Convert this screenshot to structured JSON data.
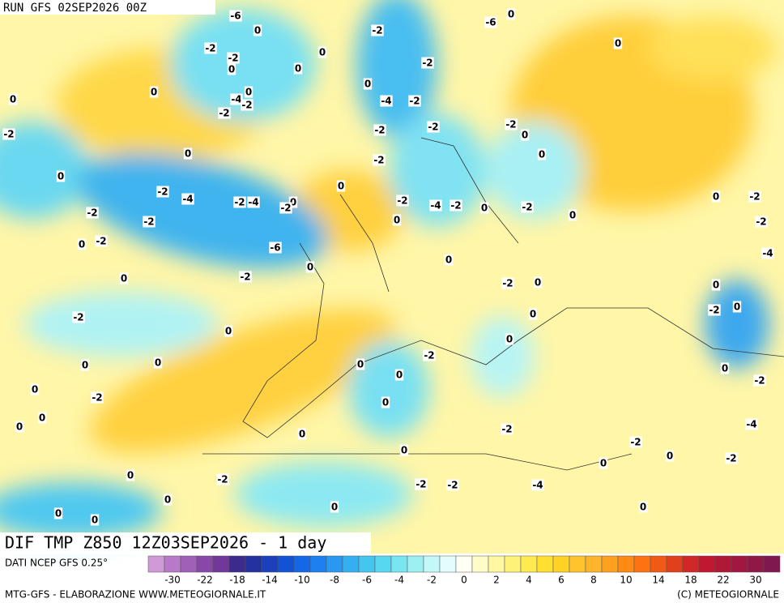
{
  "header": {
    "run": "RUN GFS 02SEP2026 00Z"
  },
  "map": {
    "title": "DIF TMP Z850 12Z03SEP2026 - 1 day",
    "contour_labels": [
      -6,
      0,
      -2,
      -2,
      0,
      0,
      0,
      0,
      0,
      -4,
      -2,
      0,
      -2,
      -2,
      -2,
      0,
      -4,
      -2,
      -2,
      -2,
      -2,
      0,
      -2,
      0,
      -2,
      -4,
      -2,
      -4,
      0,
      -2,
      0,
      -2,
      -2,
      0,
      -2,
      -6,
      0,
      -2,
      0,
      -2,
      -4,
      -2,
      0,
      -2,
      0,
      0,
      0,
      -2,
      0,
      0,
      0,
      0,
      -2,
      0,
      0,
      0,
      0,
      -2,
      0,
      -2,
      0,
      0,
      0,
      0,
      -2,
      0,
      0,
      -2,
      -2,
      -2,
      -4,
      0,
      0,
      0,
      0,
      0,
      0,
      0,
      -2,
      -2,
      -4,
      0,
      -2,
      -2,
      0,
      0,
      -4,
      -2,
      0,
      -2,
      0,
      0,
      -2,
      -6,
      0,
      0
    ]
  },
  "legend": {
    "source": "DATI NCEP GFS 0.25°",
    "ticks": [
      -30,
      -22,
      -18,
      -14,
      -10,
      -8,
      -6,
      -4,
      -2,
      0,
      2,
      4,
      6,
      8,
      10,
      14,
      18,
      22,
      30
    ],
    "colors": [
      "#d09ad8",
      "#b87ac8",
      "#a060b8",
      "#8848a8",
      "#703898",
      "#3c2a8c",
      "#2432a0",
      "#1a40bc",
      "#1452d4",
      "#1468e6",
      "#1c80f0",
      "#2a98f0",
      "#34b0f0",
      "#44c6f0",
      "#58d8f0",
      "#78e6f0",
      "#9cf0f2",
      "#c2f8f8",
      "#e4fcfc",
      "#fffff4",
      "#fffcc8",
      "#fff8a0",
      "#fff278",
      "#ffea50",
      "#ffe030",
      "#ffd224",
      "#ffc42c",
      "#ffb42c",
      "#ffa020",
      "#ff8a14",
      "#ff7214",
      "#f05a14",
      "#e0401c",
      "#d02828",
      "#c01830",
      "#b01838",
      "#a01840",
      "#901848",
      "#801850"
    ]
  },
  "footer": {
    "left": "MTG-GFS - ELABORAZIONE WWW.METEOGIORNALE.IT",
    "right": "(C) METEOGIORNALE"
  }
}
